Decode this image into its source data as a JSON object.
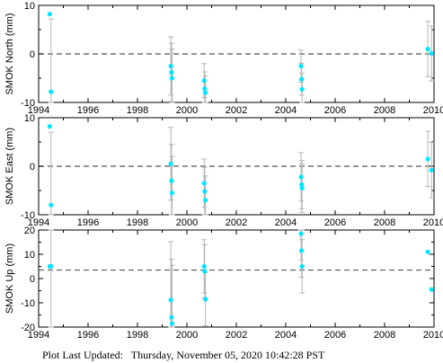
{
  "footer": {
    "label": "Plot Last Updated:",
    "timestamp": "Thursday, November 05, 2020 10:42:28 PST"
  },
  "colors": {
    "point": "#00e5ff",
    "errorbar": "#b4b4b4",
    "reference_line": "#555555",
    "axis": "#000000"
  },
  "chart_data": [
    {
      "type": "scatter",
      "ylabel": "SMOK North (mm)",
      "xlim": [
        1994,
        2010
      ],
      "ylim": [
        -10,
        10
      ],
      "xticks": [
        1994,
        1996,
        1998,
        2000,
        2002,
        2004,
        2006,
        2008,
        2010
      ],
      "yticks": [
        -10,
        0,
        10
      ],
      "reference": 0,
      "points": [
        {
          "x": 1994.45,
          "y": 8.2,
          "err": 0
        },
        {
          "x": 1994.5,
          "y": -7.8,
          "err": 15
        },
        {
          "x": 1999.35,
          "y": -2.5,
          "err": 6
        },
        {
          "x": 1999.38,
          "y": -3.8,
          "err": 6
        },
        {
          "x": 1999.4,
          "y": -5.0,
          "err": 6
        },
        {
          "x": 2000.7,
          "y": -5.5,
          "err": 3.5
        },
        {
          "x": 2000.72,
          "y": -7.2,
          "err": 3.5
        },
        {
          "x": 2000.75,
          "y": -8.0,
          "err": 3.5
        },
        {
          "x": 2004.62,
          "y": -2.5,
          "err": 3.3
        },
        {
          "x": 2004.64,
          "y": -5.2,
          "err": 3.3
        },
        {
          "x": 2004.66,
          "y": -7.3,
          "err": 3.3
        },
        {
          "x": 2009.75,
          "y": 1.0,
          "err": 5.7
        },
        {
          "x": 2009.9,
          "y": 0.1,
          "err": 5.7
        }
      ]
    },
    {
      "type": "scatter",
      "ylabel": "SMOK East (mm)",
      "xlim": [
        1994,
        2010
      ],
      "ylim": [
        -10,
        10
      ],
      "xticks": [
        1994,
        1996,
        1998,
        2000,
        2002,
        2004,
        2006,
        2008,
        2010
      ],
      "yticks": [
        -10,
        0,
        10
      ],
      "reference": 0,
      "points": [
        {
          "x": 1994.45,
          "y": 8.2,
          "err": 0
        },
        {
          "x": 1994.5,
          "y": -8.0,
          "err": 15
        },
        {
          "x": 1999.35,
          "y": 0.5,
          "err": 7.5
        },
        {
          "x": 1999.38,
          "y": -3.0,
          "err": 7.5
        },
        {
          "x": 1999.4,
          "y": -5.5,
          "err": 7.5
        },
        {
          "x": 2000.7,
          "y": -3.5,
          "err": 5
        },
        {
          "x": 2000.72,
          "y": -5.2,
          "err": 5
        },
        {
          "x": 2000.75,
          "y": -7.0,
          "err": 5
        },
        {
          "x": 2004.62,
          "y": -2.2,
          "err": 5
        },
        {
          "x": 2004.64,
          "y": -3.8,
          "err": 5
        },
        {
          "x": 2004.66,
          "y": -4.5,
          "err": 5
        },
        {
          "x": 2009.75,
          "y": 1.5,
          "err": 5.7
        },
        {
          "x": 2009.9,
          "y": -0.8,
          "err": 5.7
        }
      ]
    },
    {
      "type": "scatter",
      "ylabel": "SMOK Up (mm)",
      "xlim": [
        1994,
        2010
      ],
      "ylim": [
        -20,
        20
      ],
      "xticks": [
        1994,
        1996,
        1998,
        2000,
        2002,
        2004,
        2006,
        2008,
        2010
      ],
      "yticks": [
        -20,
        -10,
        0,
        10,
        20
      ],
      "reference": 3.5,
      "points": [
        {
          "x": 1994.45,
          "y": 5.0,
          "err": 0
        },
        {
          "x": 1994.5,
          "y": 5.0,
          "err": 26
        },
        {
          "x": 1999.35,
          "y": -8.8,
          "err": 24
        },
        {
          "x": 1999.38,
          "y": -16.0,
          "err": 24
        },
        {
          "x": 1999.4,
          "y": -18.5,
          "err": 24
        },
        {
          "x": 2000.7,
          "y": 5.0,
          "err": 11
        },
        {
          "x": 2000.72,
          "y": 3.0,
          "err": 11
        },
        {
          "x": 2000.75,
          "y": -8.5,
          "err": 11
        },
        {
          "x": 2004.62,
          "y": 18.5,
          "err": 11
        },
        {
          "x": 2004.64,
          "y": 11.5,
          "err": 11
        },
        {
          "x": 2004.66,
          "y": 5.0,
          "err": 11
        },
        {
          "x": 2009.75,
          "y": 11.0,
          "err": 0
        },
        {
          "x": 2009.9,
          "y": -4.5,
          "err": 0
        }
      ]
    }
  ]
}
